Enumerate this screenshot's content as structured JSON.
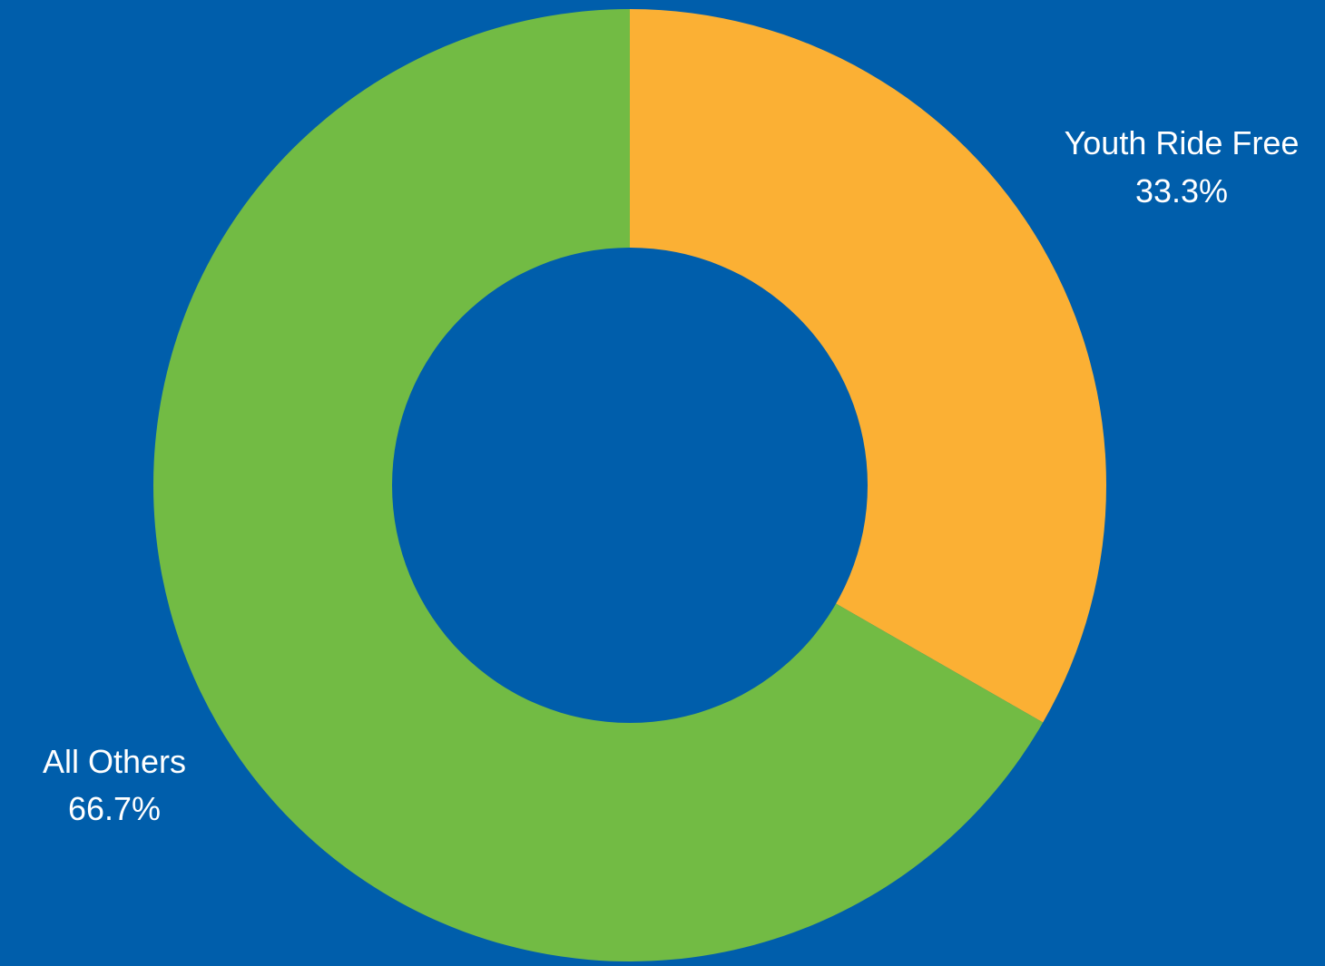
{
  "chart_data": {
    "type": "pie",
    "variant": "donut",
    "title": "",
    "slices": [
      {
        "label": "Youth Ride Free",
        "value": 33.3,
        "display": "33.3%",
        "color": "#FBB034"
      },
      {
        "label": "All Others",
        "value": 66.7,
        "display": "66.7%",
        "color": "#72BB44"
      }
    ],
    "start_angle_deg": 0,
    "direction": "clockwise",
    "labels_position": "outside"
  },
  "colors": {
    "background": "#005EAB",
    "hole": "#005EAB",
    "label_text": "#FFFFFF"
  }
}
